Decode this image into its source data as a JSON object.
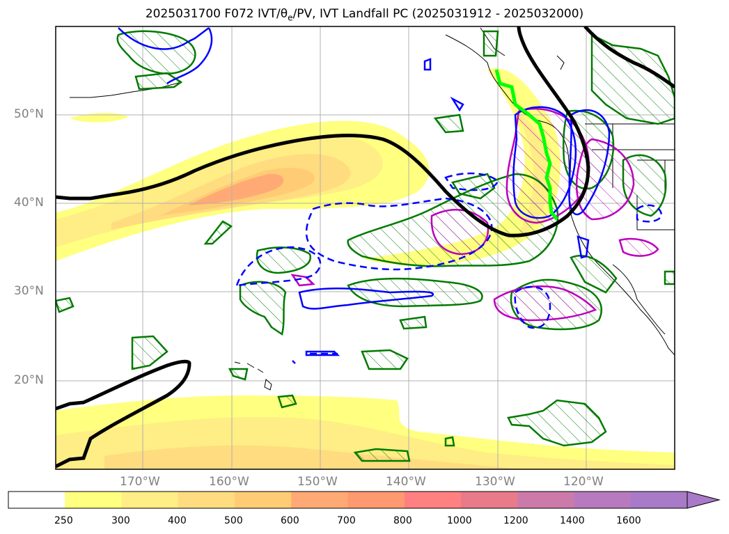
{
  "title": {
    "prefix": "2025031700 F072 IVT/",
    "theta": "θ",
    "theta_sub": "e",
    "suffix": "/PV, IVT Landfall PC (2025031912 - 2025032000)"
  },
  "lat_labels": [
    "50°N",
    "40°N",
    "30°N",
    "20°N"
  ],
  "lon_labels": [
    "170°W",
    "160°W",
    "150°W",
    "140°W",
    "130°W",
    "120°W"
  ],
  "colorbar": {
    "ticks": [
      "250",
      "300",
      "400",
      "500",
      "600",
      "700",
      "800",
      "1000",
      "1200",
      "1400",
      "1600"
    ],
    "colors": [
      "#ffffff",
      "#ffff80",
      "#ffed85",
      "#ffdc80",
      "#ffcc75",
      "#ffaa75",
      "#ff9970",
      "#ff8080",
      "#e87a8a",
      "#cc7aaa",
      "#b87abf",
      "#a97ac8"
    ]
  },
  "legend_colors": {
    "theta_e_contour": "#000000",
    "pv_positive": "#0000ff",
    "pv_negative": "#0000ff",
    "hatched_region": "#007a00",
    "landfall_pc": "#bb00bb",
    "landfall_line": "#00ff00"
  }
}
